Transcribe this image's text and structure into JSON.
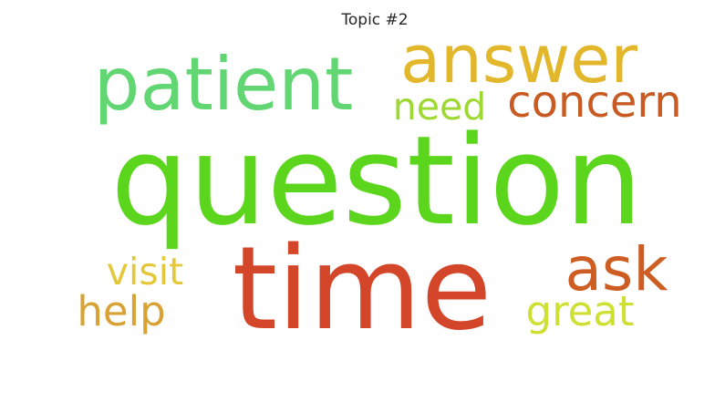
{
  "chart_data": {
    "type": "wordcloud",
    "title": "Topic #2",
    "words": [
      {
        "text": "question",
        "weight": 1.0,
        "color": "#5cd61c"
      },
      {
        "text": "time",
        "weight": 0.93,
        "color": "#d3462a"
      },
      {
        "text": "patient",
        "weight": 0.62,
        "color": "#62d672"
      },
      {
        "text": "answer",
        "weight": 0.55,
        "color": "#e2b72c"
      },
      {
        "text": "ask",
        "weight": 0.5,
        "color": "#cd5d23"
      },
      {
        "text": "concern",
        "weight": 0.36,
        "color": "#c95a21"
      },
      {
        "text": "help",
        "weight": 0.34,
        "color": "#d8a235"
      },
      {
        "text": "great",
        "weight": 0.34,
        "color": "#cfe034"
      },
      {
        "text": "need",
        "weight": 0.3,
        "color": "#9ed832"
      },
      {
        "text": "visit",
        "weight": 0.3,
        "color": "#e5c83a"
      }
    ]
  }
}
